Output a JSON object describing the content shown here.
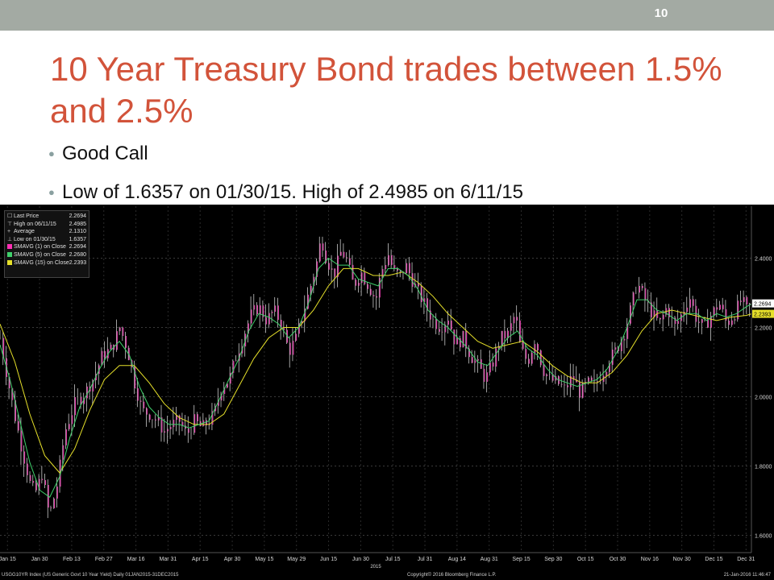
{
  "slide": {
    "number": "10",
    "title": "10 Year Treasury Bond trades between 1.5% and 2.5%",
    "bullets": [
      "Good Call",
      "Low of 1.6357 on 01/30/15.  High of 2.4985 on 6/11/15"
    ]
  },
  "chart_data": {
    "type": "line",
    "ylim": [
      1.55,
      2.55
    ],
    "yticks": [
      "1.6000",
      "1.8000",
      "2.0000",
      "2.2000",
      "2.4000"
    ],
    "x_labels": [
      "Jan 15",
      "Jan 30",
      "Feb 13",
      "Feb 27",
      "Mar 16",
      "Mar 31",
      "Apr 15",
      "Apr 30",
      "May 15",
      "May 29",
      "Jun 15",
      "Jun 30",
      "Jul 15",
      "Jul 31",
      "Aug 14",
      "Aug 31",
      "Sep 15",
      "Sep 30",
      "Oct 15",
      "Oct 30",
      "Nov 16",
      "Nov 30",
      "Dec 15",
      "Dec 31"
    ],
    "x_year_label": "2015",
    "legend": [
      {
        "label": "Last Price",
        "value": "2.2694",
        "symbol": "price"
      },
      {
        "label": "High on 06/11/15",
        "value": "2.4985",
        "symbol": "high"
      },
      {
        "label": "Average",
        "value": "2.1310",
        "symbol": "avg"
      },
      {
        "label": "Low on 01/30/15",
        "value": "1.6357",
        "symbol": "low"
      },
      {
        "label": "SMAVG (1) on Close",
        "value": "2.2694",
        "color": "#ff2fb4"
      },
      {
        "label": "SMAVG (5) on Close",
        "value": "2.2680",
        "color": "#3fd16b"
      },
      {
        "label": "SMAVG (15) on Close",
        "value": "2.2393",
        "color": "#e6e02a"
      }
    ],
    "last_value_tags": [
      {
        "value": "2.2694",
        "color": "#ffffff",
        "text_color": "#000000"
      },
      {
        "value": "2.2393",
        "color": "#e6e02a",
        "text_color": "#000000"
      }
    ],
    "close_series": {
      "name": "SMAVG (1) on Close",
      "points": [
        [
          0,
          2.17
        ],
        [
          3,
          2.05
        ],
        [
          6,
          1.94
        ],
        [
          9,
          1.84
        ],
        [
          12,
          1.75
        ],
        [
          14,
          1.72
        ],
        [
          17,
          1.78
        ],
        [
          19,
          1.68
        ],
        [
          20,
          1.66
        ],
        [
          23,
          1.75
        ],
        [
          26,
          1.9
        ],
        [
          30,
          1.98
        ],
        [
          34,
          2.01
        ],
        [
          38,
          2.06
        ],
        [
          41,
          2.12
        ],
        [
          45,
          2.14
        ],
        [
          48,
          2.2
        ],
        [
          51,
          2.14
        ],
        [
          54,
          2.04
        ],
        [
          57,
          1.96
        ],
        [
          60,
          1.95
        ],
        [
          63,
          1.93
        ],
        [
          66,
          1.9
        ],
        [
          69,
          1.92
        ],
        [
          72,
          1.93
        ],
        [
          75,
          1.89
        ],
        [
          78,
          1.93
        ],
        [
          81,
          1.91
        ],
        [
          84,
          1.93
        ],
        [
          86,
          1.95
        ],
        [
          89,
          2.03
        ],
        [
          92,
          2.05
        ],
        [
          95,
          2.12
        ],
        [
          98,
          2.18
        ],
        [
          101,
          2.24
        ],
        [
          104,
          2.26
        ],
        [
          107,
          2.22
        ],
        [
          110,
          2.25
        ],
        [
          113,
          2.21
        ],
        [
          116,
          2.13
        ],
        [
          119,
          2.17
        ],
        [
          122,
          2.25
        ],
        [
          124,
          2.3
        ],
        [
          127,
          2.38
        ],
        [
          129,
          2.46
        ],
        [
          131,
          2.4
        ],
        [
          134,
          2.35
        ],
        [
          137,
          2.42
        ],
        [
          139,
          2.4
        ],
        [
          142,
          2.32
        ],
        [
          145,
          2.36
        ],
        [
          148,
          2.32
        ],
        [
          151,
          2.28
        ],
        [
          153,
          2.36
        ],
        [
          156,
          2.41
        ],
        [
          158,
          2.36
        ],
        [
          161,
          2.35
        ],
        [
          163,
          2.38
        ],
        [
          166,
          2.33
        ],
        [
          168,
          2.3
        ],
        [
          171,
          2.26
        ],
        [
          174,
          2.22
        ],
        [
          177,
          2.2
        ],
        [
          180,
          2.23
        ],
        [
          183,
          2.15
        ],
        [
          186,
          2.17
        ],
        [
          189,
          2.12
        ],
        [
          192,
          2.09
        ],
        [
          195,
          2.05
        ],
        [
          198,
          2.1
        ],
        [
          201,
          2.17
        ],
        [
          204,
          2.18
        ],
        [
          207,
          2.24
        ],
        [
          209,
          2.14
        ],
        [
          212,
          2.1
        ],
        [
          215,
          2.17
        ],
        [
          218,
          2.08
        ],
        [
          221,
          2.05
        ],
        [
          224,
          2.04
        ],
        [
          227,
          2.02
        ],
        [
          230,
          2.06
        ],
        [
          233,
          2.01
        ],
        [
          236,
          2.04
        ],
        [
          239,
          2.03
        ],
        [
          242,
          2.07
        ],
        [
          245,
          2.11
        ],
        [
          248,
          2.14
        ],
        [
          251,
          2.19
        ],
        [
          254,
          2.27
        ],
        [
          256,
          2.33
        ],
        [
          259,
          2.28
        ],
        [
          262,
          2.24
        ],
        [
          265,
          2.21
        ],
        [
          268,
          2.26
        ],
        [
          271,
          2.2
        ],
        [
          274,
          2.24
        ],
        [
          277,
          2.29
        ],
        [
          280,
          2.22
        ],
        [
          283,
          2.2
        ],
        [
          286,
          2.24
        ],
        [
          289,
          2.27
        ],
        [
          292,
          2.21
        ],
        [
          295,
          2.24
        ],
        [
          298,
          2.28
        ],
        [
          300,
          2.25
        ],
        [
          302,
          2.27
        ]
      ]
    },
    "sma5_series": {
      "name": "SMAVG (5) on Close",
      "points": [
        [
          0,
          2.15
        ],
        [
          4,
          2.05
        ],
        [
          8,
          1.93
        ],
        [
          12,
          1.81
        ],
        [
          16,
          1.73
        ],
        [
          20,
          1.71
        ],
        [
          24,
          1.77
        ],
        [
          28,
          1.88
        ],
        [
          32,
          1.97
        ],
        [
          36,
          2.02
        ],
        [
          40,
          2.08
        ],
        [
          44,
          2.13
        ],
        [
          48,
          2.16
        ],
        [
          52,
          2.12
        ],
        [
          56,
          2.03
        ],
        [
          60,
          1.97
        ],
        [
          64,
          1.94
        ],
        [
          68,
          1.92
        ],
        [
          72,
          1.92
        ],
        [
          76,
          1.91
        ],
        [
          80,
          1.92
        ],
        [
          84,
          1.93
        ],
        [
          88,
          1.99
        ],
        [
          92,
          2.05
        ],
        [
          96,
          2.11
        ],
        [
          100,
          2.19
        ],
        [
          104,
          2.24
        ],
        [
          108,
          2.23
        ],
        [
          112,
          2.21
        ],
        [
          116,
          2.17
        ],
        [
          120,
          2.2
        ],
        [
          124,
          2.27
        ],
        [
          128,
          2.37
        ],
        [
          132,
          2.4
        ],
        [
          136,
          2.38
        ],
        [
          140,
          2.38
        ],
        [
          144,
          2.34
        ],
        [
          148,
          2.33
        ],
        [
          152,
          2.32
        ],
        [
          156,
          2.37
        ],
        [
          160,
          2.37
        ],
        [
          164,
          2.35
        ],
        [
          168,
          2.31
        ],
        [
          172,
          2.25
        ],
        [
          176,
          2.22
        ],
        [
          180,
          2.2
        ],
        [
          184,
          2.17
        ],
        [
          188,
          2.14
        ],
        [
          192,
          2.1
        ],
        [
          196,
          2.09
        ],
        [
          200,
          2.13
        ],
        [
          204,
          2.17
        ],
        [
          208,
          2.19
        ],
        [
          212,
          2.14
        ],
        [
          216,
          2.12
        ],
        [
          220,
          2.08
        ],
        [
          224,
          2.05
        ],
        [
          228,
          2.04
        ],
        [
          232,
          2.03
        ],
        [
          236,
          2.04
        ],
        [
          240,
          2.05
        ],
        [
          244,
          2.08
        ],
        [
          248,
          2.13
        ],
        [
          252,
          2.2
        ],
        [
          256,
          2.28
        ],
        [
          260,
          2.28
        ],
        [
          264,
          2.25
        ],
        [
          268,
          2.24
        ],
        [
          272,
          2.22
        ],
        [
          276,
          2.24
        ],
        [
          280,
          2.24
        ],
        [
          284,
          2.22
        ],
        [
          288,
          2.24
        ],
        [
          292,
          2.23
        ],
        [
          296,
          2.24
        ],
        [
          300,
          2.26
        ],
        [
          302,
          2.268
        ]
      ]
    },
    "sma15_series": {
      "name": "SMAVG (15) on Close",
      "points": [
        [
          0,
          2.21
        ],
        [
          6,
          2.1
        ],
        [
          12,
          1.95
        ],
        [
          18,
          1.83
        ],
        [
          24,
          1.78
        ],
        [
          30,
          1.85
        ],
        [
          36,
          1.96
        ],
        [
          42,
          2.05
        ],
        [
          48,
          2.09
        ],
        [
          54,
          2.09
        ],
        [
          60,
          2.04
        ],
        [
          66,
          1.98
        ],
        [
          72,
          1.94
        ],
        [
          78,
          1.92
        ],
        [
          84,
          1.92
        ],
        [
          90,
          1.95
        ],
        [
          96,
          2.03
        ],
        [
          102,
          2.11
        ],
        [
          108,
          2.17
        ],
        [
          114,
          2.2
        ],
        [
          120,
          2.2
        ],
        [
          126,
          2.25
        ],
        [
          132,
          2.32
        ],
        [
          138,
          2.37
        ],
        [
          144,
          2.37
        ],
        [
          150,
          2.35
        ],
        [
          156,
          2.35
        ],
        [
          162,
          2.36
        ],
        [
          168,
          2.33
        ],
        [
          174,
          2.29
        ],
        [
          180,
          2.24
        ],
        [
          186,
          2.2
        ],
        [
          192,
          2.16
        ],
        [
          198,
          2.14
        ],
        [
          204,
          2.15
        ],
        [
          210,
          2.16
        ],
        [
          216,
          2.13
        ],
        [
          222,
          2.09
        ],
        [
          228,
          2.06
        ],
        [
          234,
          2.04
        ],
        [
          240,
          2.04
        ],
        [
          246,
          2.07
        ],
        [
          252,
          2.12
        ],
        [
          258,
          2.19
        ],
        [
          264,
          2.24
        ],
        [
          270,
          2.25
        ],
        [
          276,
          2.24
        ],
        [
          282,
          2.23
        ],
        [
          288,
          2.22
        ],
        [
          294,
          2.23
        ],
        [
          300,
          2.235
        ],
        [
          302,
          2.2393
        ]
      ]
    },
    "footer": {
      "left": "USGG10YR Index (US Generic Govt 10 Year Yield)  Daily 01JAN2015-31DEC2015",
      "center": "Copyright© 2016 Bloomberg Finance L.P.",
      "right": "21-Jan-2016 11:46:47"
    }
  }
}
